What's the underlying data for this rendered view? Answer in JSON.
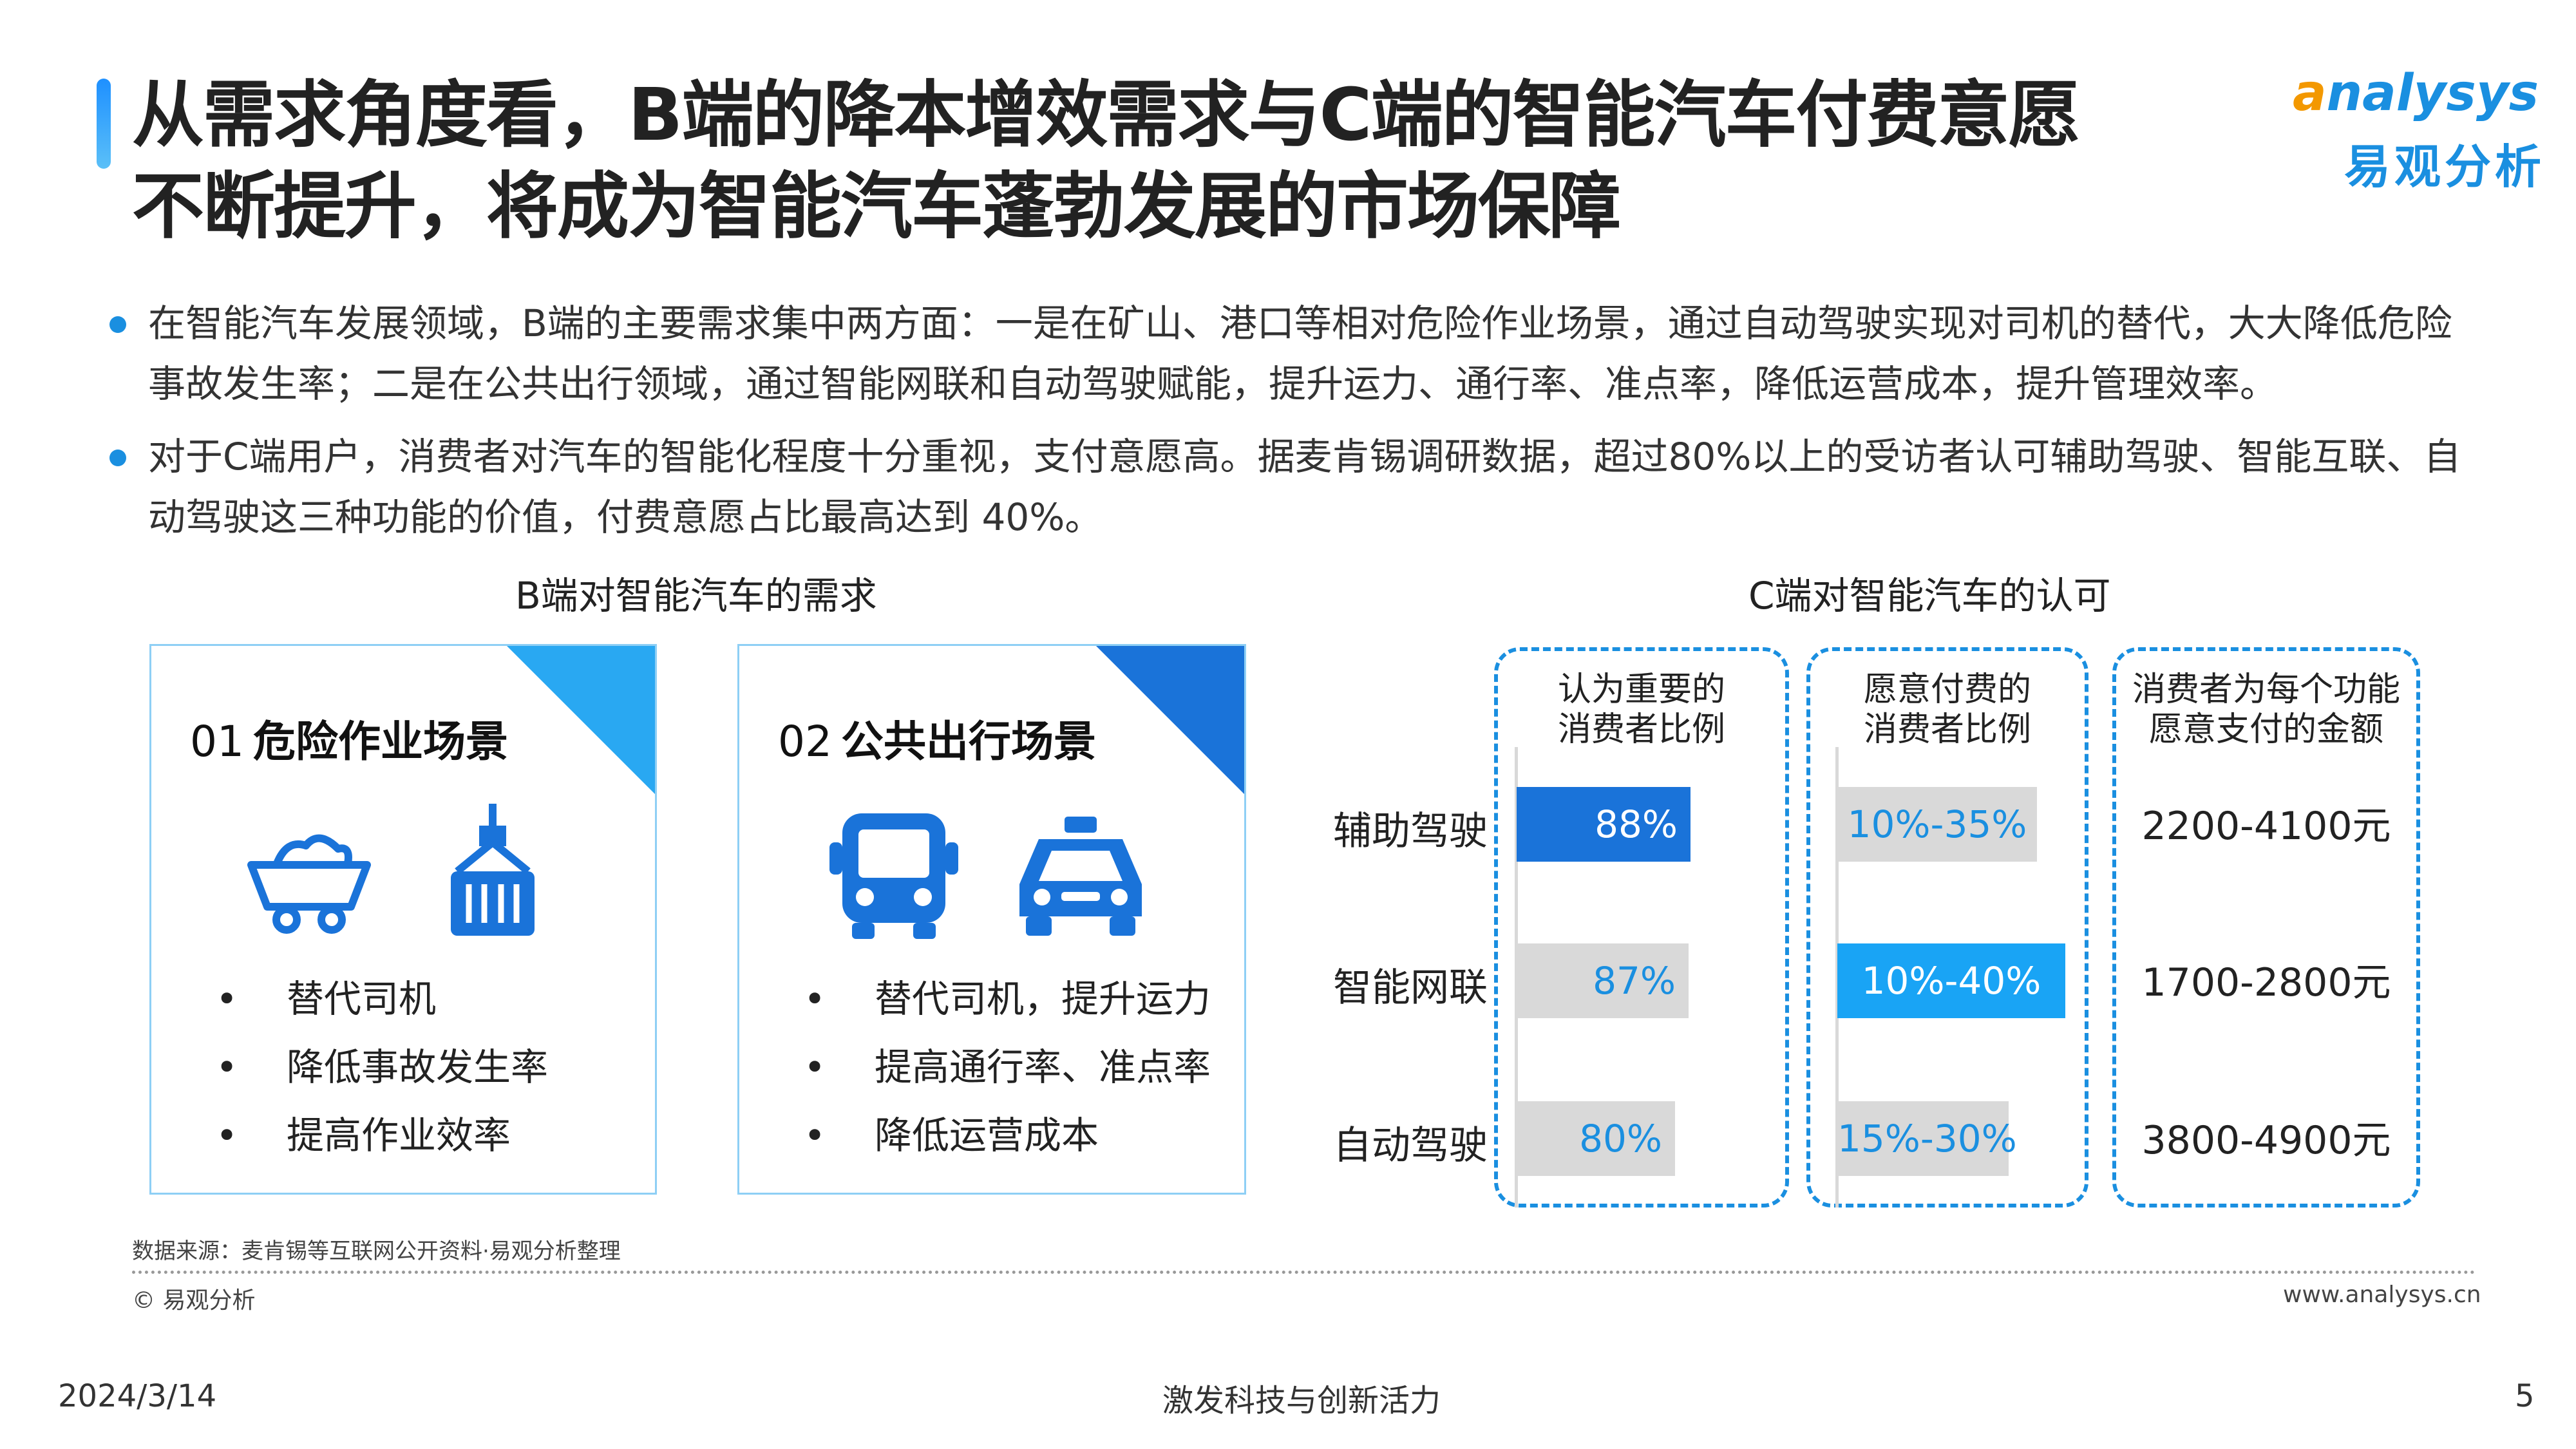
{
  "title": {
    "line1": "从需求角度看，B端的降本增效需求与C端的智能汽车付费意愿",
    "line2": "不断提升，将成为智能汽车蓬勃发展的市场保障"
  },
  "logo": {
    "en_a": "a",
    "en_rest": "nalysys",
    "cn": "易观分析"
  },
  "bullets": [
    "在智能汽车发展领域，B端的主要需求集中两方面：一是在矿山、港口等相对危险作业场景，通过自动驾驶实现对司机的替代，大大降低危险事故发生率；二是在公共出行领域，通过智能网联和自动驾驶赋能，提升运力、通行率、准点率，降低运营成本，提升管理效率。",
    "对于C端用户，消费者对汽车的智能化程度十分重视，支付意愿高。据麦肯锡调研数据，超过80%以上的受访者认可辅助驾驶、智能互联、自动驾驶这三种功能的价值，付费意愿占比最高达到 40%。"
  ],
  "left_section": {
    "heading": "B端对智能汽车的需求",
    "cards": [
      {
        "num": "01",
        "title": "危险作业场景",
        "items": [
          "替代司机",
          "降低事故发生率",
          "提高作业效率"
        ],
        "corner_color": "#29a8f2",
        "icons": [
          "mining-cart-icon",
          "container-crane-icon"
        ]
      },
      {
        "num": "02",
        "title": "公共出行场景",
        "items": [
          "替代司机，提升运力",
          "提高通行率、准点率",
          "降低运营成本"
        ],
        "corner_color": "#1a73d9",
        "icons": [
          "bus-icon",
          "taxi-icon"
        ]
      }
    ]
  },
  "right_section": {
    "heading": "C端对智能汽车的认可",
    "columns": [
      {
        "line1": "认为重要的",
        "line2": "消费者比例"
      },
      {
        "line1": "愿意付费的",
        "line2": "消费者比例"
      },
      {
        "line1": "消费者为每个功能",
        "line2": "愿意支付的金额"
      }
    ],
    "rows": [
      {
        "label": "辅助驾驶",
        "importance_value": 88,
        "importance_text": "88%",
        "importance_highlight": true,
        "pay_low": 10,
        "pay_high": 35,
        "pay_text": "10%-35%",
        "pay_highlight": false,
        "amount": "2200-4100元"
      },
      {
        "label": "智能网联",
        "importance_value": 87,
        "importance_text": "87%",
        "importance_highlight": false,
        "pay_low": 10,
        "pay_high": 40,
        "pay_text": "10%-40%",
        "pay_highlight": true,
        "amount": "1700-2800元"
      },
      {
        "label": "自动驾驶",
        "importance_value": 80,
        "importance_text": "80%",
        "importance_highlight": false,
        "pay_low": 15,
        "pay_high": 30,
        "pay_text": "15%-30%",
        "pay_highlight": false,
        "amount": "3800-4900元"
      }
    ],
    "colors": {
      "highlight_dark": "#1a73d9",
      "highlight_light": "#19a4f5",
      "neutral": "#d9d9d9",
      "neutral_text": "#1a8fe0"
    }
  },
  "footer": {
    "source": "数据来源：麦肯锡等互联网公开资料·易观分析整理",
    "copyright": "© 易观分析",
    "website": "www.analysys.cn",
    "date": "2024/3/14",
    "slogan": "激发科技与创新活力",
    "page": "5"
  }
}
